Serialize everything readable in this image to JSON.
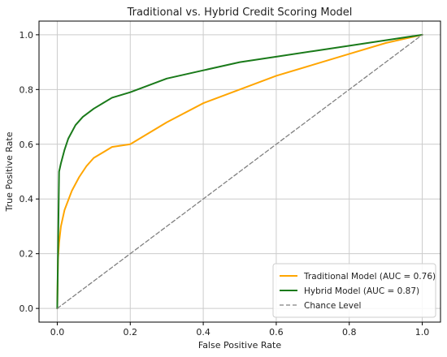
{
  "chart_data": {
    "type": "line",
    "title": "Traditional vs. Hybrid Credit Scoring Model",
    "xlabel": "False Positive Rate",
    "ylabel": "True Positive Rate",
    "xlim": [
      -0.05,
      1.05
    ],
    "ylim": [
      -0.05,
      1.05
    ],
    "xticks": [
      0.0,
      0.2,
      0.4,
      0.6,
      0.8,
      1.0
    ],
    "yticks": [
      0.0,
      0.2,
      0.4,
      0.6,
      0.8,
      1.0
    ],
    "xtick_labels": [
      "0.0",
      "0.2",
      "0.4",
      "0.6",
      "0.8",
      "1.0"
    ],
    "ytick_labels": [
      "0.0",
      "0.2",
      "0.4",
      "0.6",
      "0.8",
      "1.0"
    ],
    "grid": true,
    "legend_position": "bottom-right",
    "series": [
      {
        "name": "Traditional Model (AUC = 0.76)",
        "color": "#ffa500",
        "style": "solid",
        "x": [
          0.0,
          0.002,
          0.005,
          0.01,
          0.02,
          0.04,
          0.06,
          0.08,
          0.1,
          0.15,
          0.2,
          0.3,
          0.4,
          0.5,
          0.6,
          0.7,
          0.8,
          0.9,
          1.0
        ],
        "y": [
          0.0,
          0.18,
          0.24,
          0.3,
          0.36,
          0.43,
          0.48,
          0.52,
          0.55,
          0.59,
          0.6,
          0.68,
          0.75,
          0.8,
          0.85,
          0.89,
          0.93,
          0.97,
          1.0
        ]
      },
      {
        "name": "Hybrid Model (AUC = 0.87)",
        "color": "#1a7a1a",
        "style": "solid",
        "x": [
          0.0,
          0.005,
          0.01,
          0.02,
          0.03,
          0.05,
          0.07,
          0.1,
          0.15,
          0.2,
          0.3,
          0.4,
          0.5,
          0.6,
          0.7,
          0.8,
          0.9,
          1.0
        ],
        "y": [
          0.0,
          0.5,
          0.53,
          0.58,
          0.62,
          0.67,
          0.7,
          0.73,
          0.77,
          0.79,
          0.84,
          0.87,
          0.9,
          0.92,
          0.94,
          0.96,
          0.98,
          1.0
        ]
      },
      {
        "name": "Chance Level",
        "color": "#808080",
        "style": "dashed",
        "x": [
          0.0,
          1.0
        ],
        "y": [
          0.0,
          1.0
        ]
      }
    ]
  }
}
